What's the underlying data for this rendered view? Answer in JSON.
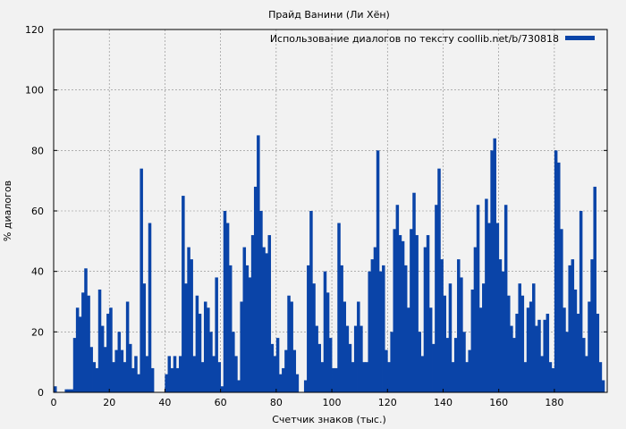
{
  "chart_data": {
    "type": "area",
    "title": "Прайд Ванини (Ли Хён)",
    "xlabel": "Счетчик знаков (тыс.)",
    "ylabel": "% диалогов",
    "xlim": [
      0,
      199
    ],
    "ylim": [
      0,
      120
    ],
    "x_ticks": [
      0,
      20,
      40,
      60,
      80,
      100,
      120,
      140,
      160,
      180
    ],
    "y_ticks": [
      0,
      20,
      40,
      60,
      80,
      100,
      120
    ],
    "grid": true,
    "legend_position": "top-right",
    "series": [
      {
        "name": "Использование диалогов по тексту coollib.net/b/730818",
        "color": "#0a44a8",
        "x": [
          0,
          1,
          2,
          3,
          4,
          5,
          6,
          7,
          8,
          9,
          10,
          11,
          12,
          13,
          14,
          15,
          16,
          17,
          18,
          19,
          20,
          21,
          22,
          23,
          24,
          25,
          26,
          27,
          28,
          29,
          30,
          31,
          32,
          33,
          34,
          35,
          36,
          37,
          38,
          39,
          40,
          41,
          42,
          43,
          44,
          45,
          46,
          47,
          48,
          49,
          50,
          51,
          52,
          53,
          54,
          55,
          56,
          57,
          58,
          59,
          60,
          61,
          62,
          63,
          64,
          65,
          66,
          67,
          68,
          69,
          70,
          71,
          72,
          73,
          74,
          75,
          76,
          77,
          78,
          79,
          80,
          81,
          82,
          83,
          84,
          85,
          86,
          87,
          88,
          89,
          90,
          91,
          92,
          93,
          94,
          95,
          96,
          97,
          98,
          99,
          100,
          101,
          102,
          103,
          104,
          105,
          106,
          107,
          108,
          109,
          110,
          111,
          112,
          113,
          114,
          115,
          116,
          117,
          118,
          119,
          120,
          121,
          122,
          123,
          124,
          125,
          126,
          127,
          128,
          129,
          130,
          131,
          132,
          133,
          134,
          135,
          136,
          137,
          138,
          139,
          140,
          141,
          142,
          143,
          144,
          145,
          146,
          147,
          148,
          149,
          150,
          151,
          152,
          153,
          154,
          155,
          156,
          157,
          158,
          159,
          160,
          161,
          162,
          163,
          164,
          165,
          166,
          167,
          168,
          169,
          170,
          171,
          172,
          173,
          174,
          175,
          176,
          177,
          178,
          179,
          180,
          181,
          182,
          183,
          184,
          185,
          186,
          187,
          188,
          189,
          190,
          191,
          192,
          193,
          194,
          195,
          196,
          197,
          198
        ],
        "values": [
          2,
          0,
          0,
          0,
          1,
          1,
          1,
          18,
          28,
          25,
          33,
          41,
          32,
          15,
          10,
          8,
          34,
          22,
          15,
          26,
          28,
          10,
          14,
          20,
          14,
          10,
          30,
          16,
          8,
          12,
          6,
          74,
          36,
          12,
          56,
          8,
          0,
          0,
          0,
          0,
          6,
          12,
          8,
          12,
          8,
          12,
          65,
          36,
          48,
          44,
          12,
          32,
          26,
          10,
          30,
          28,
          20,
          12,
          38,
          10,
          2,
          60,
          56,
          42,
          20,
          12,
          4,
          30,
          48,
          42,
          38,
          52,
          68,
          85,
          60,
          48,
          46,
          52,
          16,
          12,
          18,
          6,
          8,
          14,
          32,
          30,
          14,
          6,
          0,
          0,
          4,
          42,
          60,
          36,
          22,
          16,
          10,
          40,
          33,
          18,
          8,
          8,
          56,
          42,
          30,
          22,
          16,
          10,
          22,
          30,
          22,
          10,
          10,
          40,
          44,
          48,
          80,
          40,
          42,
          14,
          10,
          20,
          54,
          62,
          52,
          50,
          42,
          28,
          54,
          66,
          52,
          20,
          12,
          48,
          52,
          28,
          16,
          62,
          74,
          44,
          32,
          18,
          36,
          10,
          18,
          44,
          38,
          20,
          10,
          14,
          34,
          48,
          62,
          28,
          36,
          64,
          56,
          80,
          84,
          56,
          44,
          40,
          62,
          32,
          22,
          18,
          26,
          36,
          32,
          10,
          28,
          30,
          36,
          22,
          24,
          12,
          24,
          26,
          10,
          8,
          80,
          76,
          54,
          28,
          20,
          42,
          44,
          34,
          26,
          60,
          18,
          12,
          30,
          44,
          68,
          26,
          10,
          4,
          0
        ]
      }
    ]
  }
}
